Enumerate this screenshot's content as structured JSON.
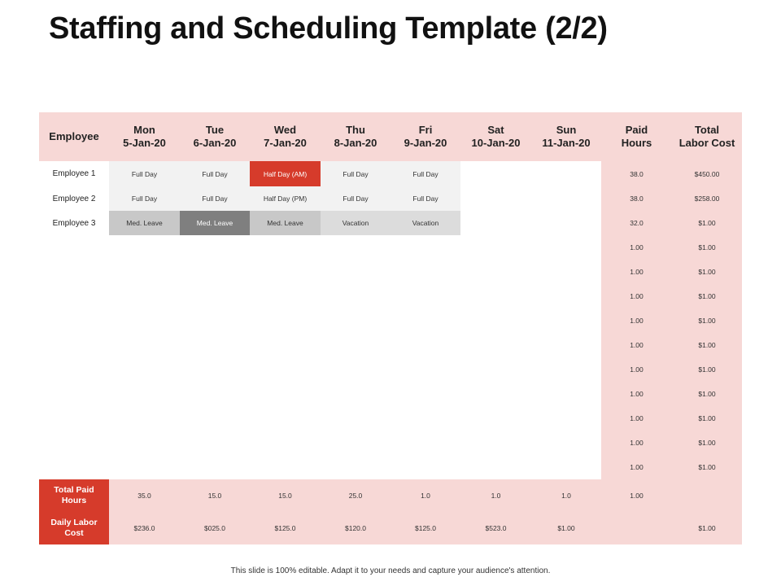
{
  "title": "Staffing and Scheduling Template (2/2)",
  "table": {
    "header": {
      "employee": "Employee",
      "days": [
        {
          "name": "Mon",
          "date": "5-Jan-20"
        },
        {
          "name": "Tue",
          "date": "6-Jan-20"
        },
        {
          "name": "Wed",
          "date": "7-Jan-20"
        },
        {
          "name": "Thu",
          "date": "8-Jan-20"
        },
        {
          "name": "Fri",
          "date": "9-Jan-20"
        },
        {
          "name": "Sat",
          "date": "10-Jan-20"
        },
        {
          "name": "Sun",
          "date": "11-Jan-20"
        }
      ],
      "paid_hours": [
        "Paid",
        "Hours"
      ],
      "total_labor_cost": [
        "Total",
        "Labor Cost"
      ]
    },
    "employees": [
      {
        "name": "Employee 1",
        "days": [
          "Full Day",
          "Full Day",
          "Half Day (AM)",
          "Full Day",
          "Full Day",
          "",
          ""
        ],
        "paid_hours": "38.0",
        "total_cost": "$450.00"
      },
      {
        "name": "Employee 2",
        "days": [
          "Full Day",
          "Full Day",
          "Half Day (PM)",
          "Full Day",
          "Full Day",
          "",
          ""
        ],
        "paid_hours": "38.0",
        "total_cost": "$258.00"
      },
      {
        "name": "Employee 3",
        "days": [
          "Med. Leave",
          "Med. Leave",
          "Med. Leave",
          "Vacation",
          "Vacation",
          "",
          ""
        ],
        "paid_hours": "32.0",
        "total_cost": "$1.00"
      }
    ],
    "blank_rows": [
      {
        "paid_hours": "1.00",
        "total_cost": "$1.00"
      },
      {
        "paid_hours": "1.00",
        "total_cost": "$1.00"
      },
      {
        "paid_hours": "1.00",
        "total_cost": "$1.00"
      },
      {
        "paid_hours": "1.00",
        "total_cost": "$1.00"
      },
      {
        "paid_hours": "1.00",
        "total_cost": "$1.00"
      },
      {
        "paid_hours": "1.00",
        "total_cost": "$1.00"
      },
      {
        "paid_hours": "1.00",
        "total_cost": "$1.00"
      },
      {
        "paid_hours": "1.00",
        "total_cost": "$1.00"
      },
      {
        "paid_hours": "1.00",
        "total_cost": "$1.00"
      },
      {
        "paid_hours": "1.00",
        "total_cost": "$1.00"
      }
    ],
    "footer": {
      "total_paid_hours": {
        "label": [
          "Total Paid",
          "Hours"
        ],
        "values": [
          "35.0",
          "15.0",
          "15.0",
          "25.0",
          "1.0",
          "1.0",
          "1.0"
        ],
        "paid_hours": "1.00",
        "total_cost": ""
      },
      "daily_labor_cost": {
        "label": [
          "Daily Labor",
          "Cost"
        ],
        "values": [
          "$236.0",
          "$025.0",
          "$125.0",
          "$120.0",
          "$125.0",
          "$523.0",
          "$1.00"
        ],
        "paid_hours": "",
        "total_cost": "$1.00"
      }
    }
  },
  "footer_note": "This slide is 100% editable. Adapt it to your needs and capture your audience's attention.",
  "colors": {
    "header_pink": "#f7d8d6",
    "accent_red": "#d63b2b",
    "full_day": "#f2f2f2",
    "med_leave": "#c8c8c8",
    "med_leave_dark": "#7f7f7f",
    "vacation": "#dcdcdc"
  }
}
